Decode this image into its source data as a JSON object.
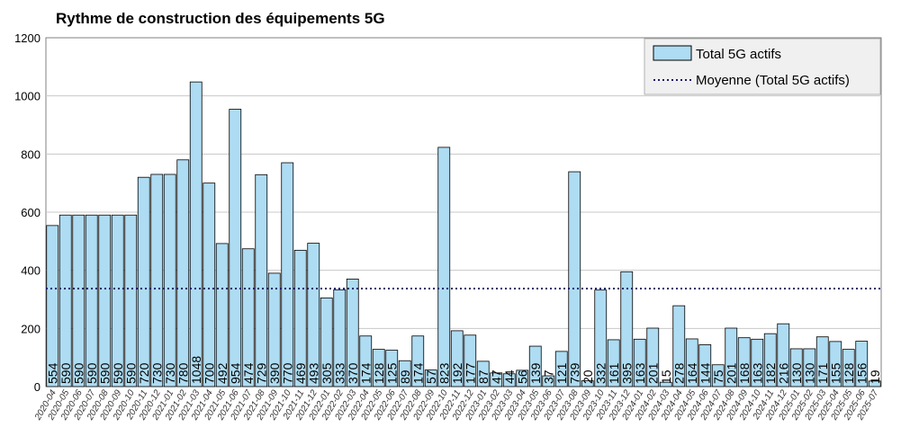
{
  "chart_data": {
    "type": "bar",
    "title": "Rythme de construction des équipements 5G",
    "xlabel": "",
    "ylabel": "",
    "ylim": [
      0,
      1200
    ],
    "yticks": [
      0,
      200,
      400,
      600,
      800,
      1000,
      1200
    ],
    "grid": true,
    "legend_position": "top-right",
    "legend": {
      "bar_label": "Total 5G actifs",
      "line_label": "Moyenne (Total 5G actifs)"
    },
    "colors": {
      "bar_fill": "#aedcf2",
      "bar_stroke": "#000000",
      "mean_line": "#1f1a6b",
      "grid": "#c8c8c8",
      "plot_background": "#ffffff",
      "legend_background": "#f0f0f0"
    },
    "mean": 337,
    "categories": [
      "2020-04",
      "2020-05",
      "2020-06",
      "2020-07",
      "2020-08",
      "2020-09",
      "2020-10",
      "2020-11",
      "2020-12",
      "2021-01",
      "2021-02",
      "2021-03",
      "2021-04",
      "2021-05",
      "2021-06",
      "2021-07",
      "2021-08",
      "2021-09",
      "2021-10",
      "2021-11",
      "2021-12",
      "2022-01",
      "2022-02",
      "2022-03",
      "2022-04",
      "2022-05",
      "2022-06",
      "2022-07",
      "2022-08",
      "2022-09",
      "2022-10",
      "2022-11",
      "2022-12",
      "2023-01",
      "2023-02",
      "2023-03",
      "2023-04",
      "2023-05",
      "2023-06",
      "2023-07",
      "2023-08",
      "2023-09",
      "2023-10",
      "2023-11",
      "2023-12",
      "2024-01",
      "2024-02",
      "2024-03",
      "2024-04",
      "2024-05",
      "2024-06",
      "2024-07",
      "2024-08",
      "2024-09",
      "2024-10",
      "2024-11",
      "2024-12",
      "2025-01",
      "2025-02",
      "2025-03",
      "2025-04",
      "2025-05",
      "2025-06",
      "2025-07"
    ],
    "series": [
      {
        "name": "Total 5G actifs",
        "values": [
          554,
          590,
          590,
          590,
          590,
          590,
          590,
          720,
          730,
          730,
          780,
          1048,
          700,
          492,
          954,
          474,
          729,
          390,
          770,
          469,
          493,
          305,
          333,
          370,
          174,
          128,
          125,
          89,
          174,
          57,
          823,
          192,
          177,
          87,
          47,
          44,
          56,
          139,
          37,
          121,
          739,
          20,
          332,
          161,
          395,
          163,
          201,
          15,
          278,
          164,
          144,
          75,
          201,
          168,
          163,
          182,
          216,
          130,
          130,
          171,
          155,
          128,
          156,
          19
        ]
      }
    ]
  }
}
